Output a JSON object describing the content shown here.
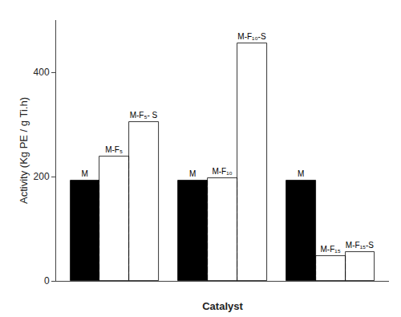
{
  "chart_data": {
    "type": "bar",
    "xlabel": "Catalyst",
    "ylabel": "Activity (Kg PE / g Ti.h)",
    "categories": [
      "M",
      "M-F₅",
      "M-F₅- S",
      "M",
      "M-F₁₀",
      "M-F₁₀-S",
      "M",
      "M-F₁₅",
      "M-F₁₅-S"
    ],
    "values": [
      193,
      238,
      305,
      193,
      197,
      455,
      193,
      48,
      55
    ],
    "colors": [
      "black",
      "white",
      "white",
      "black",
      "white",
      "white",
      "black",
      "white",
      "white"
    ],
    "ylim": [
      0,
      500
    ],
    "yticks": [
      0,
      200,
      400
    ],
    "grid": false,
    "tick_labels": "y"
  }
}
